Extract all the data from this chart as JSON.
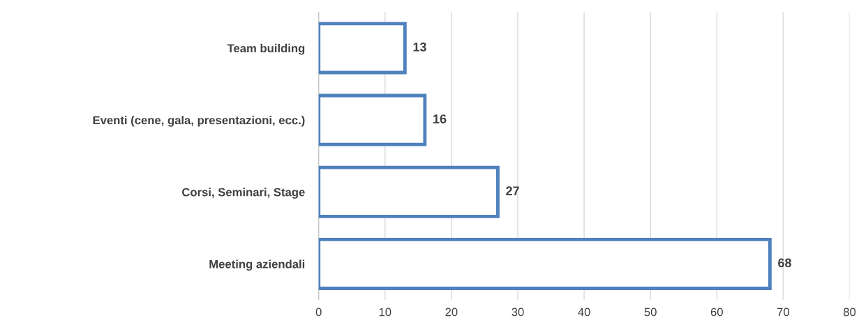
{
  "chart_data": {
    "type": "bar",
    "orientation": "horizontal",
    "categories": [
      "Team building",
      "Eventi (cene, gala, presentazioni, ecc.)",
      "Corsi, Seminari, Stage",
      "Meeting aziendali"
    ],
    "values": [
      13,
      16,
      27,
      68
    ],
    "color": "#4f81bd",
    "xlim": [
      0,
      80
    ],
    "xticks": [
      0,
      10,
      20,
      30,
      40,
      50,
      60,
      70,
      80
    ],
    "grid": "x",
    "data_labels": true,
    "legend": false
  }
}
